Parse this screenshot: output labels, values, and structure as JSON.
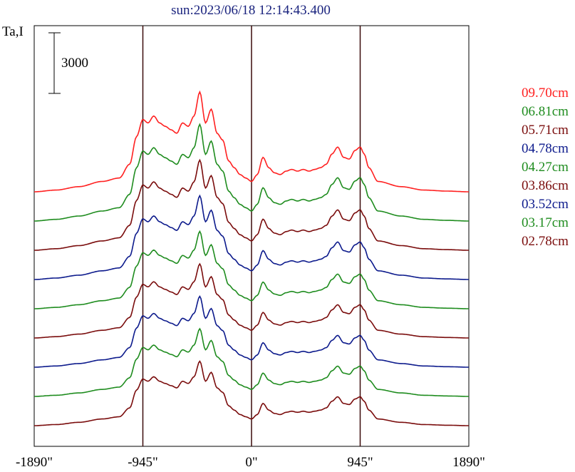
{
  "chart_data": {
    "type": "line",
    "title": "sun:2023/06/18 12:14:43.400",
    "ylabel": "Ta,I",
    "xlabel": "",
    "xlim": [
      -1890,
      1890
    ],
    "x_ticks": [
      -1890,
      -945,
      0,
      945,
      1890
    ],
    "x_tick_labels": [
      "-1890\"",
      "-945\"",
      "0\"",
      "945\"",
      "1890\""
    ],
    "vertical_lines": [
      -945,
      0,
      945
    ],
    "scale_bar": {
      "label": "3000",
      "value": 3000
    },
    "grid": false,
    "legend": "right",
    "profile_anchors": {
      "x": [
        -1890,
        -1700,
        -1500,
        -1300,
        -1150,
        -1060,
        -1000,
        -945,
        -900,
        -850,
        -800,
        -750,
        -700,
        -650,
        -600,
        -550,
        -500,
        -450,
        -400,
        -350,
        -300,
        -250,
        -200,
        -150,
        -100,
        -50,
        0,
        50,
        100,
        150,
        200,
        250,
        300,
        350,
        400,
        450,
        500,
        550,
        600,
        650,
        700,
        750,
        800,
        850,
        900,
        945,
        980,
        1020,
        1100,
        1300,
        1500,
        1700,
        1890
      ],
      "y": [
        0,
        50,
        150,
        300,
        400,
        800,
        1600,
        2100,
        2000,
        2200,
        2000,
        1900,
        1800,
        1700,
        2000,
        1900,
        2200,
        2900,
        2000,
        2400,
        1700,
        1500,
        900,
        700,
        500,
        400,
        300,
        500,
        1000,
        700,
        550,
        500,
        600,
        650,
        600,
        650,
        600,
        650,
        700,
        800,
        1100,
        1300,
        1000,
        950,
        1200,
        1300,
        1100,
        700,
        300,
        150,
        50,
        20,
        0
      ]
    },
    "series": [
      {
        "name": "09.70cm",
        "color": "#ff2020",
        "amp": 3.1
      },
      {
        "name": "06.81cm",
        "color": "#1e8c1e",
        "amp": 3.0
      },
      {
        "name": "05.71cm",
        "color": "#7a0c0c",
        "amp": 2.8
      },
      {
        "name": "04.78cm",
        "color": "#0c1a8c",
        "amp": 2.6
      },
      {
        "name": "04.27cm",
        "color": "#1e8c1e",
        "amp": 2.4
      },
      {
        "name": "03.86cm",
        "color": "#7a0c0c",
        "amp": 2.3
      },
      {
        "name": "03.52cm",
        "color": "#0c1a8c",
        "amp": 2.2
      },
      {
        "name": "03.17cm",
        "color": "#1e8c1e",
        "amp": 2.1
      },
      {
        "name": "02.78cm",
        "color": "#7a0c0c",
        "amp": 2.0
      }
    ]
  }
}
